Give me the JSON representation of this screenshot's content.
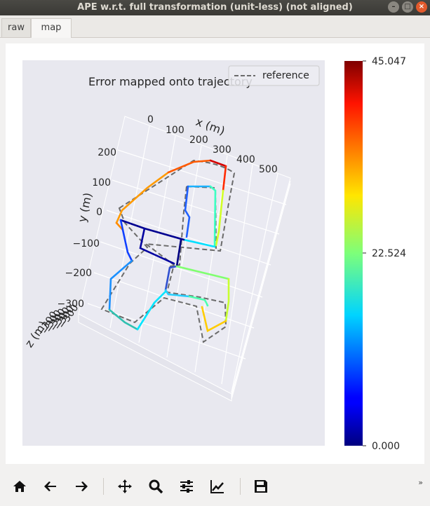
{
  "window": {
    "title": "APE w.r.t. full transformation (unit-less) (not aligned)"
  },
  "tabs": [
    {
      "label": "raw"
    },
    {
      "label": "map"
    }
  ],
  "chart_data": {
    "type": "line",
    "title": "Error mapped onto trajectory",
    "legend": {
      "entries": [
        "reference"
      ],
      "placement": "top-right"
    },
    "x_axis": {
      "label": "x (m)",
      "ticks": [
        "0",
        "100",
        "200",
        "300",
        "400",
        "500"
      ]
    },
    "y_axis": {
      "label": "y (m)",
      "ticks": [
        "200",
        "100",
        "0",
        "−100",
        "−200",
        "−300"
      ]
    },
    "z_axis": {
      "label": "z (m)"
    },
    "colorbar": {
      "min": 0.0,
      "max": 45.047,
      "ticks": [
        "45.047",
        "22.524",
        "0.000"
      ],
      "colormap": "jet"
    },
    "series": [
      {
        "name": "reference",
        "style": "dashed",
        "color": "#666666"
      }
    ],
    "grid": true,
    "background": "#e8e8ef"
  },
  "toolbar": {
    "home": "home-icon",
    "back": "back-arrow-icon",
    "forward": "forward-arrow-icon",
    "pan": "pan-icon",
    "zoom": "zoom-icon",
    "subplots": "sliders-icon",
    "edit": "edit-curve-icon",
    "save": "save-icon",
    "more": "»"
  }
}
